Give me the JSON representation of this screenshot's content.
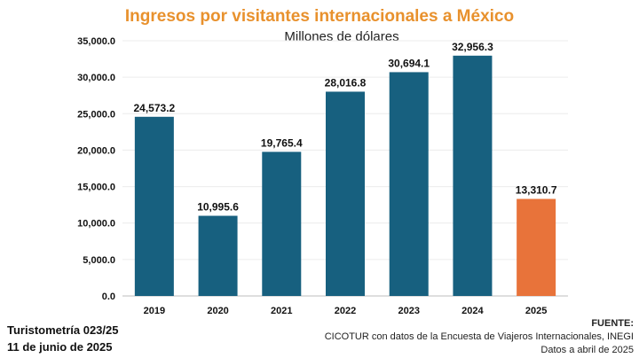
{
  "chart_data": {
    "type": "bar",
    "title": "Ingresos por visitantes internacionales a México",
    "subtitle": "Millones de dólares",
    "categories": [
      "2019",
      "2020",
      "2021",
      "2022",
      "2023",
      "2024",
      "2025"
    ],
    "values": [
      24573.2,
      10995.6,
      19765.4,
      28016.8,
      30694.1,
      32956.3,
      13310.7
    ],
    "data_labels": [
      "24,573.2",
      "10,995.6",
      "19,765.4",
      "28,016.8",
      "30,694.1",
      "32,956.3",
      "13,310.7"
    ],
    "ylim": [
      0,
      35000
    ],
    "yticks": [
      0,
      5000,
      10000,
      15000,
      20000,
      25000,
      30000,
      35000
    ],
    "ytick_labels": [
      "0.0",
      "5,000.0",
      "10,000.0",
      "15,000.0",
      "20,000.0",
      "25,000.0",
      "30,000.0",
      "35,000.0"
    ],
    "bar_colors": [
      "#17607F",
      "#17607F",
      "#17607F",
      "#17607F",
      "#17607F",
      "#17607F",
      "#E8733A"
    ],
    "grid": true
  },
  "footer": {
    "left_line1": "Turistometría 023/25",
    "left_line2": "11 de junio de 2025",
    "source_title": "FUENTE:",
    "source_line1": "CICOTUR con datos de la Encuesta de Viajeros Internacionales, INEGI",
    "source_line2": "Datos a abril de 2025"
  }
}
